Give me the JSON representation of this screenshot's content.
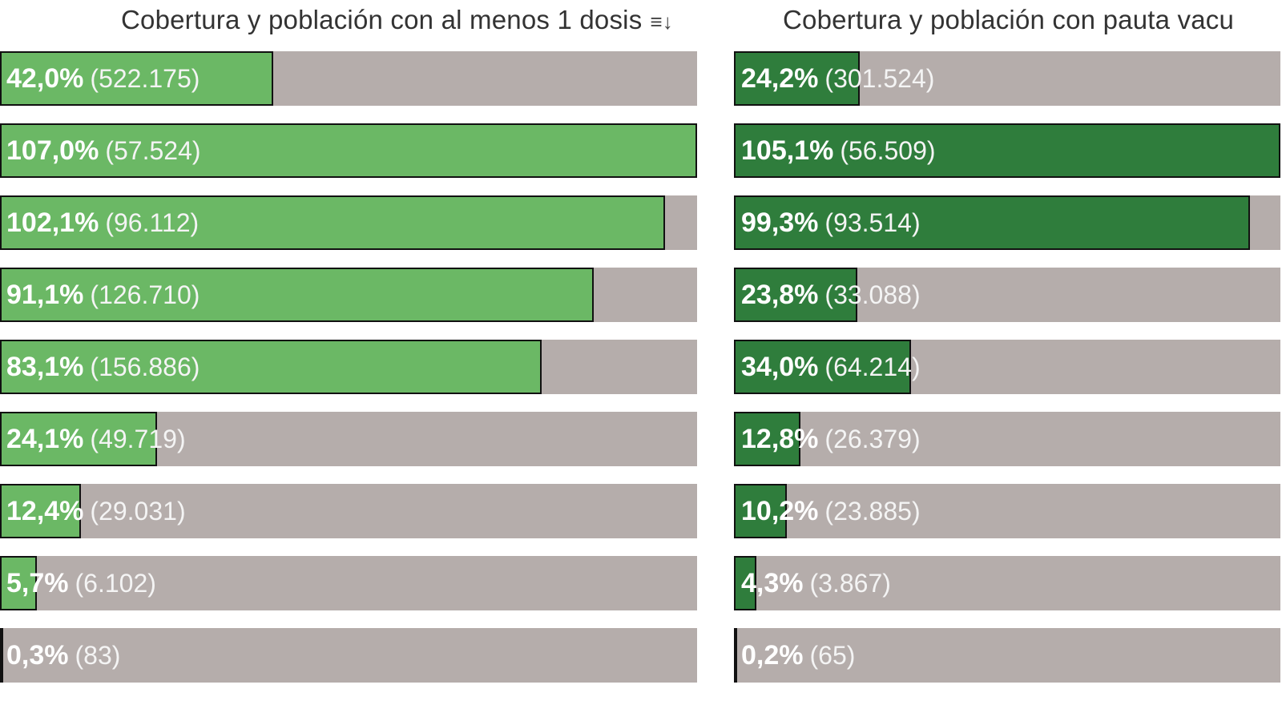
{
  "chart_data": [
    {
      "type": "bar",
      "orientation": "horizontal",
      "title": "Cobertura y población con al menos 1 dosis",
      "sort_icon": "sort-icon",
      "color": "#6bb865",
      "track_color": "#b5adab",
      "xlim": [
        0,
        107.0
      ],
      "values": [
        42.0,
        107.0,
        102.1,
        91.1,
        83.1,
        24.1,
        12.4,
        5.7,
        0.3
      ],
      "percent_labels": [
        "42,0%",
        "107,0%",
        "102,1%",
        "91,1%",
        "83,1%",
        "24,1%",
        "12,4%",
        "5,7%",
        "0,3%"
      ],
      "population_labels": [
        "(522.175)",
        "(57.524)",
        "(96.112)",
        "(126.710)",
        "(156.886)",
        "(49.719)",
        "(29.031)",
        "(6.102)",
        "(83)"
      ]
    },
    {
      "type": "bar",
      "orientation": "horizontal",
      "title": "Cobertura y población con pauta vacu",
      "color": "#2f7d3c",
      "track_color": "#b5adab",
      "xlim": [
        0,
        105.1
      ],
      "values": [
        24.2,
        105.1,
        99.3,
        23.8,
        34.0,
        12.8,
        10.2,
        4.3,
        0.2
      ],
      "percent_labels": [
        "24,2%",
        "105,1%",
        "99,3%",
        "23,8%",
        "34,0%",
        "12,8%",
        "10,2%",
        "4,3%",
        "0,2%"
      ],
      "population_labels": [
        "(301.524)",
        "(56.509)",
        "(93.514)",
        "(33.088)",
        "(64.214)",
        "(26.379)",
        "(23.885)",
        "(3.867)",
        "(65)"
      ]
    }
  ]
}
